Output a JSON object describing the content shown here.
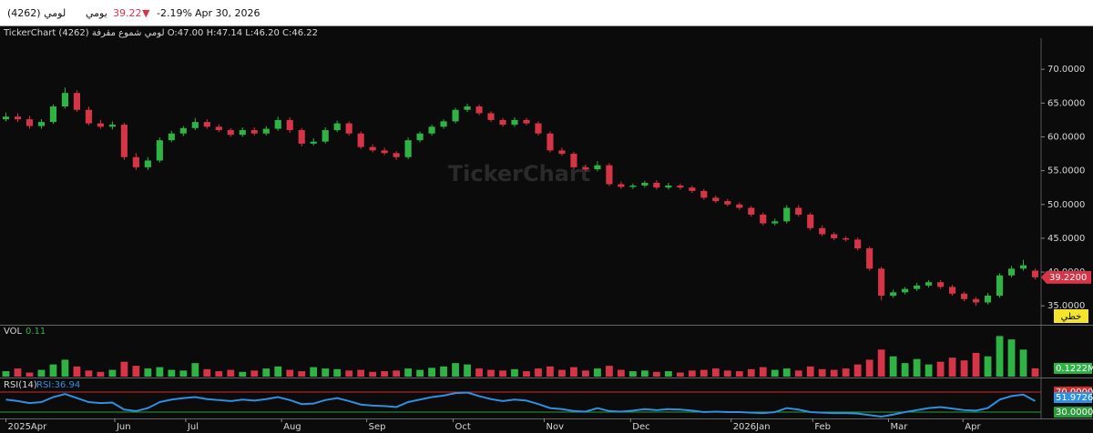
{
  "header": {
    "symbol": "لومي (4262)",
    "period": "يومي",
    "price": "39.22",
    "arrow": "▼",
    "change": "-2.19%",
    "date": "Apr 30, 2026"
  },
  "chart_data": {
    "type": "candlestick",
    "info": "TickerChart (4262) لومي شموع مقرفة  O:47.00  H:47.14  L:46.20  C:46.22",
    "watermark": "TickerChart",
    "up_color": "#2fb344",
    "down_color": "#d63447",
    "ylim": [
      32.2,
      74.6
    ],
    "yticks": [
      {
        "value": 35,
        "label": "35.0000"
      },
      {
        "value": 40,
        "label": "40.0000"
      },
      {
        "value": 45,
        "label": "45.0000"
      },
      {
        "value": 50,
        "label": "50.0000"
      },
      {
        "value": 55,
        "label": "55.0000"
      },
      {
        "value": 60,
        "label": "60.0000"
      },
      {
        "value": 65,
        "label": "65.0000"
      },
      {
        "value": 70,
        "label": "70.0000"
      }
    ],
    "xlim": [
      -0.5,
      87.5
    ],
    "xticks": [
      {
        "value": 0,
        "label": "2025Apr"
      },
      {
        "value": 9.2,
        "label": "Jun"
      },
      {
        "value": 15.2,
        "label": "Jul"
      },
      {
        "value": 23.3,
        "label": "Aug"
      },
      {
        "value": 30.5,
        "label": "Sep"
      },
      {
        "value": 37.8,
        "label": "Oct"
      },
      {
        "value": 45.5,
        "label": "Nov"
      },
      {
        "value": 52.8,
        "label": "Dec"
      },
      {
        "value": 61.3,
        "label": "2026Jan"
      },
      {
        "value": 68.2,
        "label": "Feb"
      },
      {
        "value": 74.6,
        "label": "Mar"
      },
      {
        "value": 80.9,
        "label": "Apr"
      }
    ],
    "open": [
      62.6,
      63.0,
      62.6,
      61.6,
      62.2,
      64.5,
      66.5,
      64.0,
      62.0,
      61.5,
      61.8,
      57.0,
      55.5,
      56.5,
      59.5,
      60.5,
      61.3,
      62.2,
      61.5,
      61.0,
      60.3,
      61.0,
      60.5,
      61.2,
      62.5,
      61.0,
      59.0,
      59.3,
      61.0,
      62.0,
      60.5,
      58.5,
      58.0,
      57.6,
      57.0,
      59.5,
      60.5,
      61.5,
      62.3,
      64.0,
      64.5,
      63.5,
      62.5,
      61.8,
      62.5,
      62.0,
      60.5,
      58.0,
      57.5,
      55.5,
      55.2,
      55.8,
      53.0,
      52.6,
      52.8,
      53.2,
      52.5,
      52.8,
      52.5,
      52.0,
      51.0,
      50.5,
      50.0,
      49.5,
      48.5,
      47.2,
      47.5,
      49.5,
      48.5,
      46.5,
      45.6,
      45.0,
      44.8,
      43.5,
      40.5,
      36.5,
      37.0,
      37.5,
      38.0,
      38.5,
      37.8,
      36.8,
      36.0,
      35.5,
      36.5,
      39.5,
      40.5,
      40.2
    ],
    "high": [
      63.6,
      63.5,
      63.1,
      62.6,
      64.8,
      67.3,
      66.9,
      64.5,
      62.5,
      62.3,
      62.1,
      57.6,
      57.0,
      59.9,
      60.9,
      61.6,
      62.8,
      62.6,
      61.9,
      61.3,
      61.4,
      61.4,
      61.6,
      63.0,
      62.9,
      61.3,
      59.8,
      61.4,
      62.4,
      62.3,
      60.8,
      58.9,
      58.4,
      57.9,
      59.9,
      60.8,
      61.8,
      62.6,
      64.3,
      64.9,
      64.8,
      63.8,
      62.8,
      62.9,
      62.8,
      62.3,
      60.8,
      58.4,
      57.8,
      55.9,
      56.4,
      56.1,
      53.4,
      53.1,
      53.5,
      53.6,
      53.2,
      53.1,
      52.8,
      52.3,
      51.3,
      50.8,
      50.3,
      49.8,
      48.8,
      47.9,
      49.9,
      49.9,
      48.8,
      46.9,
      45.9,
      45.3,
      45.1,
      43.8,
      40.8,
      37.4,
      37.8,
      38.4,
      38.8,
      38.8,
      38.1,
      37.1,
      36.3,
      36.9,
      39.8,
      40.9,
      41.8,
      40.5
    ],
    "low": [
      62.3,
      62.2,
      61.2,
      61.2,
      61.9,
      64.2,
      63.7,
      61.7,
      61.2,
      61.1,
      56.6,
      55.1,
      55.1,
      56.2,
      59.2,
      60.1,
      61.0,
      61.2,
      60.7,
      60.0,
      60.0,
      60.2,
      60.2,
      60.9,
      60.6,
      58.6,
      58.7,
      59.0,
      60.7,
      60.2,
      58.2,
      57.7,
      57.3,
      56.6,
      56.7,
      59.2,
      60.2,
      61.2,
      62.0,
      63.7,
      63.2,
      62.2,
      61.5,
      61.5,
      61.7,
      60.2,
      57.7,
      57.2,
      55.2,
      54.9,
      54.9,
      52.7,
      52.3,
      52.3,
      52.5,
      52.2,
      52.2,
      52.2,
      51.7,
      50.7,
      50.2,
      49.7,
      49.2,
      48.2,
      46.9,
      46.9,
      47.2,
      48.2,
      46.2,
      45.3,
      44.7,
      44.5,
      43.2,
      40.2,
      35.8,
      36.2,
      36.7,
      37.2,
      37.7,
      37.5,
      36.5,
      35.7,
      35.0,
      35.2,
      36.2,
      39.2,
      40.2,
      38.9
    ],
    "close": [
      63.0,
      62.6,
      61.6,
      62.2,
      64.5,
      66.5,
      64.0,
      62.0,
      61.5,
      61.8,
      57.0,
      55.5,
      56.5,
      59.5,
      60.5,
      61.3,
      62.2,
      61.5,
      61.0,
      60.3,
      61.0,
      60.5,
      61.2,
      62.5,
      61.0,
      59.0,
      59.3,
      61.0,
      62.0,
      60.5,
      58.5,
      58.0,
      57.6,
      57.0,
      59.5,
      60.5,
      61.5,
      62.3,
      64.0,
      64.5,
      63.5,
      62.5,
      61.8,
      62.5,
      62.0,
      60.5,
      58.0,
      57.5,
      55.5,
      55.2,
      55.8,
      53.0,
      52.6,
      52.8,
      53.2,
      52.5,
      52.8,
      52.5,
      52.0,
      51.0,
      50.5,
      50.0,
      49.5,
      48.5,
      47.2,
      47.5,
      49.5,
      48.5,
      46.5,
      45.6,
      45.0,
      44.8,
      43.5,
      40.5,
      36.5,
      37.0,
      37.5,
      38.0,
      38.5,
      37.8,
      36.8,
      36.0,
      35.5,
      36.5,
      39.5,
      40.5,
      41.0,
      39.22
    ],
    "current_price_label": "39.2200",
    "style_label": "خطي",
    "volume": {
      "name": "VOL",
      "legend_value": "0.11",
      "ylim": [
        0,
        0.7
      ],
      "last_label": "0.1222M",
      "values": [
        0.08,
        0.12,
        0.06,
        0.1,
        0.18,
        0.25,
        0.15,
        0.09,
        0.07,
        0.1,
        0.22,
        0.16,
        0.12,
        0.14,
        0.1,
        0.09,
        0.2,
        0.11,
        0.08,
        0.1,
        0.07,
        0.09,
        0.12,
        0.15,
        0.1,
        0.08,
        0.14,
        0.12,
        0.11,
        0.09,
        0.1,
        0.07,
        0.08,
        0.09,
        0.12,
        0.1,
        0.13,
        0.15,
        0.2,
        0.18,
        0.12,
        0.1,
        0.09,
        0.11,
        0.08,
        0.12,
        0.15,
        0.1,
        0.14,
        0.09,
        0.12,
        0.16,
        0.1,
        0.08,
        0.09,
        0.07,
        0.08,
        0.06,
        0.09,
        0.1,
        0.12,
        0.09,
        0.08,
        0.11,
        0.14,
        0.1,
        0.12,
        0.09,
        0.15,
        0.11,
        0.1,
        0.12,
        0.18,
        0.25,
        0.4,
        0.3,
        0.2,
        0.26,
        0.18,
        0.22,
        0.28,
        0.24,
        0.35,
        0.3,
        0.6,
        0.55,
        0.4,
        0.1222
      ]
    },
    "rsi": {
      "name": "RSI(14)",
      "legend": "RSI:36.94",
      "color": "#2f8fe0",
      "ylim": [
        17.3,
        97.3
      ],
      "last_label": "51.9726",
      "levels": [
        {
          "value": 70,
          "label": "70.0000",
          "color": "#d62b2b"
        },
        {
          "value": 30,
          "label": "30.0000",
          "color": "#2a9d3a"
        }
      ],
      "values": [
        55,
        52,
        48,
        50,
        60,
        66,
        58,
        50,
        48,
        49,
        35,
        32,
        38,
        50,
        55,
        58,
        60,
        56,
        54,
        52,
        55,
        53,
        56,
        60,
        54,
        46,
        47,
        54,
        58,
        52,
        45,
        43,
        42,
        40,
        50,
        55,
        60,
        63,
        68,
        69,
        62,
        56,
        52,
        55,
        53,
        46,
        38,
        36,
        32,
        31,
        38,
        32,
        31,
        33,
        36,
        34,
        36,
        35,
        33,
        30,
        31,
        30,
        30,
        29,
        28,
        30,
        38,
        35,
        30,
        29,
        28,
        28,
        27,
        24,
        21,
        25,
        30,
        34,
        38,
        40,
        37,
        34,
        33,
        38,
        55,
        62,
        65,
        52
      ]
    }
  }
}
